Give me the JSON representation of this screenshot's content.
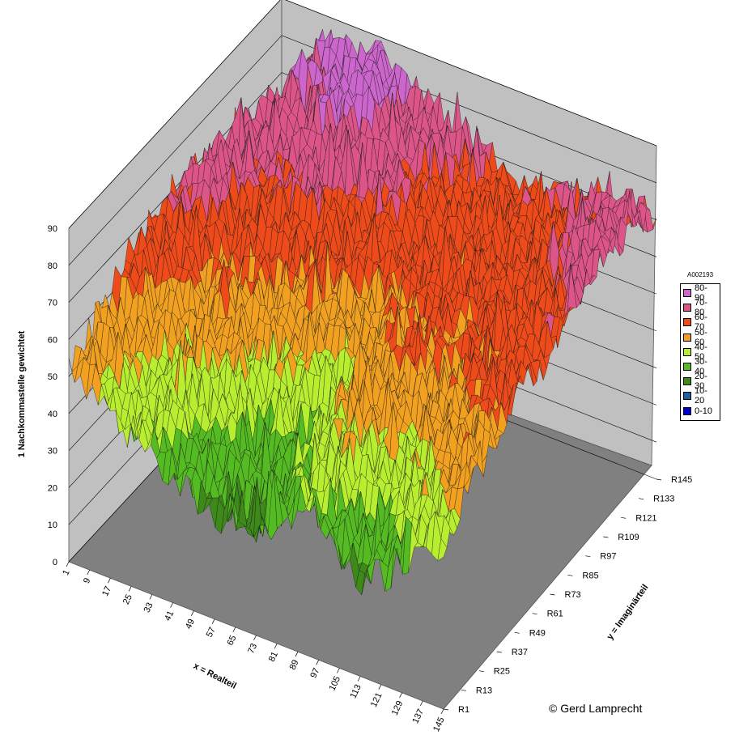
{
  "chart_data": {
    "type": "surface",
    "title": "",
    "xlabel": "x = Realteil",
    "ylabel": "y = Imaginärteil",
    "zlabel": "1 Nachkommastelle gewichtet",
    "zlim": [
      0,
      90
    ],
    "z_ticks": [
      "0",
      "10",
      "20",
      "30",
      "40",
      "50",
      "60",
      "70",
      "80",
      "90"
    ],
    "x_ticks": [
      "1",
      "9",
      "17",
      "25",
      "33",
      "41",
      "49",
      "57",
      "65",
      "73",
      "81",
      "89",
      "97",
      "105",
      "113",
      "121",
      "129",
      "137",
      "145"
    ],
    "y_ticks": [
      "R1",
      "R13",
      "R25",
      "R37",
      "R49",
      "R61",
      "R73",
      "R85",
      "R97",
      "R109",
      "R121",
      "R133",
      "R145"
    ],
    "grid": true,
    "legend_position": "right",
    "legend": {
      "title": "A002193",
      "entries": [
        {
          "label": "80-90",
          "color": "#cc66cc"
        },
        {
          "label": "70-80",
          "color": "#dd5588"
        },
        {
          "label": "60-70",
          "color": "#ee4a1a"
        },
        {
          "label": "50-60",
          "color": "#f2a020"
        },
        {
          "label": "40-50",
          "color": "#b8ee30"
        },
        {
          "label": "30-40",
          "color": "#55bb22"
        },
        {
          "label": "20-30",
          "color": "#3d8a1a"
        },
        {
          "label": "10-20",
          "color": "#1f5fa0"
        },
        {
          "label": "0-10",
          "color": "#0000cc"
        }
      ]
    },
    "surface_approx": {
      "rows_y": [
        "R1",
        "R13",
        "R25",
        "R37",
        "R49",
        "R61",
        "R73",
        "R85",
        "R97",
        "R109",
        "R121",
        "R133",
        "R145"
      ],
      "cols_x": [
        "1",
        "9",
        "17",
        "25",
        "33",
        "41",
        "49",
        "57",
        "65",
        "73",
        "81",
        "89",
        "97",
        "105",
        "113",
        "121",
        "129",
        "137",
        "145"
      ],
      "z": [
        [
          55,
          50,
          45,
          40,
          38,
          32,
          30,
          28,
          30,
          28,
          34,
          40,
          38,
          28,
          26,
          30,
          36,
          44,
          46
        ],
        [
          55,
          52,
          46,
          42,
          44,
          40,
          36,
          32,
          32,
          30,
          36,
          42,
          44,
          40,
          36,
          40,
          46,
          48,
          50
        ],
        [
          58,
          54,
          50,
          46,
          50,
          46,
          40,
          36,
          34,
          34,
          40,
          46,
          50,
          46,
          44,
          48,
          52,
          54,
          56
        ],
        [
          62,
          60,
          56,
          50,
          52,
          50,
          46,
          44,
          40,
          38,
          44,
          52,
          56,
          54,
          50,
          54,
          56,
          58,
          60
        ],
        [
          66,
          64,
          60,
          54,
          56,
          54,
          52,
          50,
          46,
          44,
          48,
          56,
          58,
          58,
          56,
          58,
          60,
          62,
          62
        ],
        [
          68,
          68,
          64,
          58,
          60,
          58,
          56,
          56,
          52,
          50,
          52,
          58,
          60,
          60,
          58,
          60,
          62,
          64,
          64
        ],
        [
          70,
          72,
          68,
          62,
          64,
          62,
          60,
          60,
          58,
          56,
          56,
          60,
          62,
          60,
          60,
          62,
          64,
          66,
          66
        ],
        [
          68,
          74,
          72,
          66,
          68,
          66,
          64,
          64,
          62,
          60,
          60,
          62,
          62,
          62,
          62,
          62,
          64,
          68,
          68
        ],
        [
          64,
          76,
          74,
          70,
          72,
          70,
          68,
          66,
          66,
          64,
          62,
          62,
          62,
          64,
          64,
          64,
          66,
          70,
          72
        ],
        [
          60,
          74,
          76,
          72,
          76,
          74,
          72,
          70,
          68,
          66,
          64,
          62,
          62,
          64,
          66,
          68,
          70,
          74,
          74
        ],
        [
          58,
          72,
          78,
          76,
          80,
          80,
          76,
          74,
          70,
          68,
          66,
          64,
          62,
          64,
          66,
          68,
          72,
          76,
          76
        ],
        [
          56,
          70,
          80,
          80,
          84,
          84,
          80,
          76,
          72,
          70,
          68,
          66,
          64,
          66,
          68,
          70,
          72,
          74,
          74
        ],
        [
          54,
          68,
          82,
          84,
          86,
          86,
          82,
          78,
          74,
          72,
          70,
          68,
          66,
          66,
          68,
          70,
          70,
          72,
          72
        ]
      ]
    }
  },
  "credit": "© Gerd Lamprecht"
}
